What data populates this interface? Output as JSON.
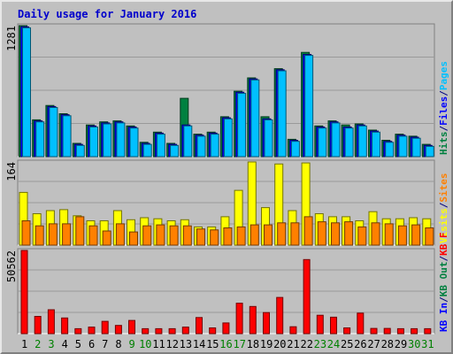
{
  "chart_data": {
    "type": "bar",
    "title": "Daily usage for January 2016",
    "x": [
      "1",
      "2",
      "3",
      "4",
      "5",
      "6",
      "7",
      "8",
      "9",
      "10",
      "11",
      "12",
      "13",
      "14",
      "15",
      "16",
      "17",
      "18",
      "19",
      "20",
      "21",
      "22",
      "23",
      "24",
      "25",
      "26",
      "27",
      "28",
      "29",
      "30",
      "31"
    ],
    "weekend_days": [
      "2",
      "3",
      "9",
      "10",
      "16",
      "17",
      "23",
      "24",
      "30",
      "31"
    ],
    "panels": [
      {
        "ymax_label": "1281",
        "ymax": 1281,
        "legend": [
          {
            "text": "Hits",
            "color": "#008040"
          },
          {
            "text": "/",
            "color": "#000080"
          },
          {
            "text": "Files",
            "color": "#0000ff"
          },
          {
            "text": "/",
            "color": "#000080"
          },
          {
            "text": "Pages",
            "color": "#00c0ff"
          }
        ],
        "series": [
          {
            "name": "Hits",
            "color": "#008040",
            "values": [
              1281,
              360,
              500,
              420,
              130,
              310,
              340,
              350,
              300,
              140,
              240,
              130,
              570,
              220,
              240,
              390,
              640,
              770,
              390,
              860,
              170,
              1020,
              300,
              350,
              310,
              320,
              260,
              160,
              220,
              200,
              120
            ]
          },
          {
            "name": "Files",
            "color": "#0000ff",
            "values": [
              1270,
              350,
              490,
              410,
              120,
              300,
              330,
              340,
              290,
              130,
              230,
              120,
              310,
              210,
              230,
              380,
              630,
              760,
              370,
              850,
              160,
              1000,
              290,
              340,
              290,
              310,
              250,
              150,
              210,
              190,
              110
            ]
          },
          {
            "name": "Pages",
            "color": "#00c0ff",
            "values": [
              1260,
              340,
              480,
              400,
              110,
              290,
              320,
              330,
              280,
              120,
              220,
              110,
              300,
              200,
              220,
              370,
              620,
              750,
              360,
              840,
              150,
              990,
              280,
              330,
              280,
              300,
              240,
              140,
              200,
              180,
              100
            ]
          }
        ]
      },
      {
        "ymax_label": "164",
        "ymax": 164,
        "legend": [
          {
            "text": "Visits",
            "color": "#ffff00"
          },
          {
            "text": "/",
            "color": "#000080"
          },
          {
            "text": "Sites",
            "color": "#ff8000"
          }
        ],
        "series": [
          {
            "name": "Visits",
            "color": "#ffff00",
            "values": [
              104,
              62,
              68,
              70,
              58,
              48,
              48,
              68,
              50,
              54,
              52,
              48,
              50,
              36,
              36,
              56,
              108,
              164,
              74,
              160,
              68,
              162,
              62,
              56,
              56,
              48,
              66,
              52,
              52,
              54,
              52
            ]
          },
          {
            "name": "Sites",
            "color": "#ff8000",
            "values": [
              48,
              38,
              42,
              42,
              56,
              38,
              28,
              42,
              26,
              38,
              40,
              38,
              38,
              32,
              30,
              34,
              36,
              40,
              40,
              44,
              44,
              56,
              46,
              44,
              46,
              36,
              44,
              42,
              38,
              40,
              34
            ]
          }
        ]
      },
      {
        "ymax_label": "50562",
        "ymax": 50562,
        "legend": [
          {
            "text": "KB In",
            "color": "#0000ff"
          },
          {
            "text": "/",
            "color": "#000080"
          },
          {
            "text": "KB Out",
            "color": "#008040"
          },
          {
            "text": "/",
            "color": "#000080"
          },
          {
            "text": "KB F",
            "color": "#ff0000"
          }
        ],
        "series": [
          {
            "name": "KB F",
            "color": "#ff0000",
            "values": [
              50562,
              10500,
              14500,
              9500,
              3000,
              4000,
              7500,
              5000,
              8000,
              3000,
              3000,
              3000,
              4000,
              9800,
              3500,
              6500,
              18500,
              16500,
              12800,
              22000,
              4200,
              45000,
              11200,
              10000,
              3500,
              12500,
              3200,
              3200,
              3000,
              3000,
              3000
            ]
          }
        ]
      }
    ]
  }
}
